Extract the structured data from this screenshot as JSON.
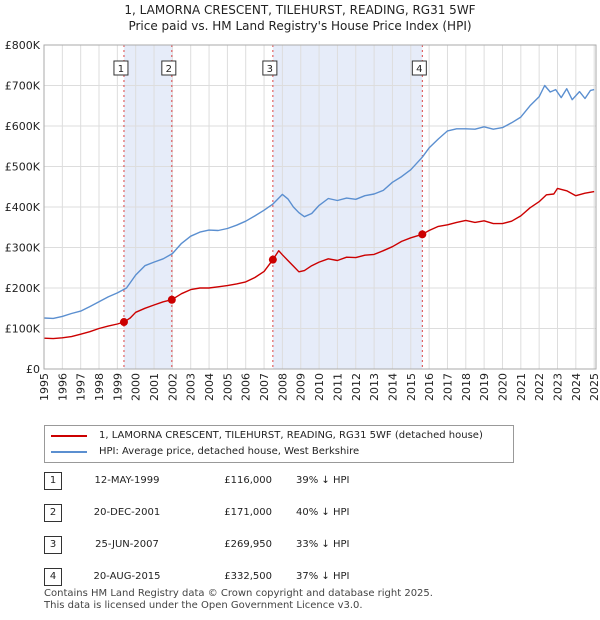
{
  "title_line1": "1, LAMORNA CRESCENT, TILEHURST, READING, RG31 5WF",
  "title_line2": "Price paid vs. HM Land Registry's House Price Index (HPI)",
  "chart_data": {
    "type": "line",
    "title": "1, LAMORNA CRESCENT, TILEHURST, READING, RG31 5WF — Price paid vs. HM Land Registry's House Price Index (HPI)",
    "xlim": [
      1995,
      2025.1
    ],
    "ylim": [
      0,
      800000
    ],
    "x_ticks": [
      1995,
      1996,
      1997,
      1998,
      1999,
      2000,
      2001,
      2002,
      2003,
      2004,
      2005,
      2006,
      2007,
      2008,
      2009,
      2010,
      2011,
      2012,
      2013,
      2014,
      2015,
      2016,
      2017,
      2018,
      2019,
      2020,
      2021,
      2022,
      2023,
      2024,
      2025
    ],
    "y_ticks": [
      {
        "value": 0,
        "label": "£0"
      },
      {
        "value": 100000,
        "label": "£100K"
      },
      {
        "value": 200000,
        "label": "£200K"
      },
      {
        "value": 300000,
        "label": "£300K"
      },
      {
        "value": 400000,
        "label": "£400K"
      },
      {
        "value": 500000,
        "label": "£500K"
      },
      {
        "value": 600000,
        "label": "£600K"
      },
      {
        "value": 700000,
        "label": "£700K"
      },
      {
        "value": 800000,
        "label": "£800K"
      }
    ],
    "grid": true,
    "shaded_spans": [
      [
        1999.36,
        2001.97
      ],
      [
        2007.48,
        2015.63
      ]
    ],
    "series": [
      {
        "name": "1, LAMORNA CRESCENT, TILEHURST, READING, RG31 5WF (detached house)",
        "color": "#cc0000",
        "x": [
          1995,
          1995.5,
          1996,
          1996.5,
          1997,
          1997.5,
          1998,
          1998.5,
          1999,
          1999.36,
          1999.7,
          2000,
          2000.5,
          2001,
          2001.5,
          2001.97,
          2002.5,
          2003,
          2003.5,
          2004,
          2004.5,
          2005,
          2005.5,
          2006,
          2006.5,
          2007,
          2007.48,
          2007.8,
          2008,
          2008.3,
          2008.6,
          2008.9,
          2009.2,
          2009.6,
          2010,
          2010.5,
          2011,
          2011.5,
          2012,
          2012.5,
          2013,
          2013.5,
          2014,
          2014.5,
          2015,
          2015.63,
          2016,
          2016.5,
          2017,
          2017.5,
          2018,
          2018.5,
          2019,
          2019.5,
          2020,
          2020.5,
          2021,
          2021.5,
          2022,
          2022.4,
          2022.8,
          2023,
          2023.5,
          2024,
          2024.5,
          2025
        ],
        "y": [
          76000,
          75000,
          77000,
          80000,
          86000,
          92000,
          100000,
          106000,
          111000,
          116000,
          126000,
          140000,
          150000,
          158000,
          166000,
          171000,
          186000,
          196000,
          200000,
          200000,
          203000,
          206000,
          210000,
          215000,
          226000,
          241000,
          269950,
          292000,
          282000,
          268000,
          254000,
          240000,
          243000,
          255000,
          264000,
          272000,
          268000,
          276000,
          275000,
          281000,
          283000,
          292000,
          302000,
          315000,
          324000,
          332500,
          342000,
          352000,
          356000,
          362000,
          367000,
          362000,
          366000,
          359000,
          359000,
          365000,
          378000,
          398000,
          413000,
          430000,
          432000,
          446000,
          440000,
          428000,
          434000,
          438000
        ]
      },
      {
        "name": "HPI: Average price, detached house, West Berkshire",
        "color": "#5b8fd0",
        "x": [
          1995,
          1995.5,
          1996,
          1996.5,
          1997,
          1997.5,
          1998,
          1998.5,
          1999,
          1999.5,
          2000,
          2000.5,
          2001,
          2001.5,
          2002,
          2002.5,
          2003,
          2003.5,
          2004,
          2004.5,
          2005,
          2005.5,
          2006,
          2006.5,
          2007,
          2007.5,
          2008,
          2008.3,
          2008.6,
          2008.9,
          2009.2,
          2009.6,
          2010,
          2010.5,
          2011,
          2011.5,
          2012,
          2012.5,
          2013,
          2013.5,
          2014,
          2014.5,
          2015,
          2015.63,
          2016,
          2016.5,
          2017,
          2017.5,
          2018,
          2018.5,
          2019,
          2019.5,
          2020,
          2020.5,
          2021,
          2021.5,
          2022,
          2022.3,
          2022.6,
          2022.9,
          2023.2,
          2023.5,
          2023.8,
          2024.2,
          2024.5,
          2024.8,
          2025
        ],
        "y": [
          126000,
          125000,
          130000,
          137000,
          143000,
          154000,
          166000,
          178000,
          188000,
          200000,
          232000,
          255000,
          264000,
          272000,
          285000,
          310000,
          328000,
          338000,
          343000,
          342000,
          347000,
          355000,
          365000,
          378000,
          392000,
          408000,
          431000,
          420000,
          400000,
          386000,
          376000,
          384000,
          404000,
          421000,
          416000,
          422000,
          419000,
          428000,
          432000,
          441000,
          461000,
          475000,
          492000,
          523000,
          546000,
          568000,
          588000,
          593000,
          593000,
          592000,
          598000,
          592000,
          596000,
          608000,
          622000,
          650000,
          672000,
          700000,
          684000,
          690000,
          670000,
          692000,
          665000,
          685000,
          668000,
          688000,
          690000
        ]
      }
    ],
    "markers": [
      {
        "label": "1",
        "x": 1999.36,
        "y": 116000
      },
      {
        "label": "2",
        "x": 2001.97,
        "y": 171000
      },
      {
        "label": "3",
        "x": 2007.48,
        "y": 269950
      },
      {
        "label": "4",
        "x": 2015.63,
        "y": 332500
      }
    ]
  },
  "legend": [
    {
      "label": "1, LAMORNA CRESCENT, TILEHURST, READING, RG31 5WF (detached house)",
      "color": "#cc0000"
    },
    {
      "label": "HPI: Average price, detached house, West Berkshire",
      "color": "#5b8fd0"
    }
  ],
  "transactions": [
    {
      "num": "1",
      "date": "12-MAY-1999",
      "price": "£116,000",
      "hpi": "39% ↓ HPI"
    },
    {
      "num": "2",
      "date": "20-DEC-2001",
      "price": "£171,000",
      "hpi": "40% ↓ HPI"
    },
    {
      "num": "3",
      "date": "25-JUN-2007",
      "price": "£269,950",
      "hpi": "33% ↓ HPI"
    },
    {
      "num": "4",
      "date": "20-AUG-2015",
      "price": "£332,500",
      "hpi": "37% ↓ HPI"
    }
  ],
  "footer": {
    "line1": "Contains HM Land Registry data © Crown copyright and database right 2025.",
    "line2": "This data is licensed under the Open Government Licence v3.0."
  }
}
